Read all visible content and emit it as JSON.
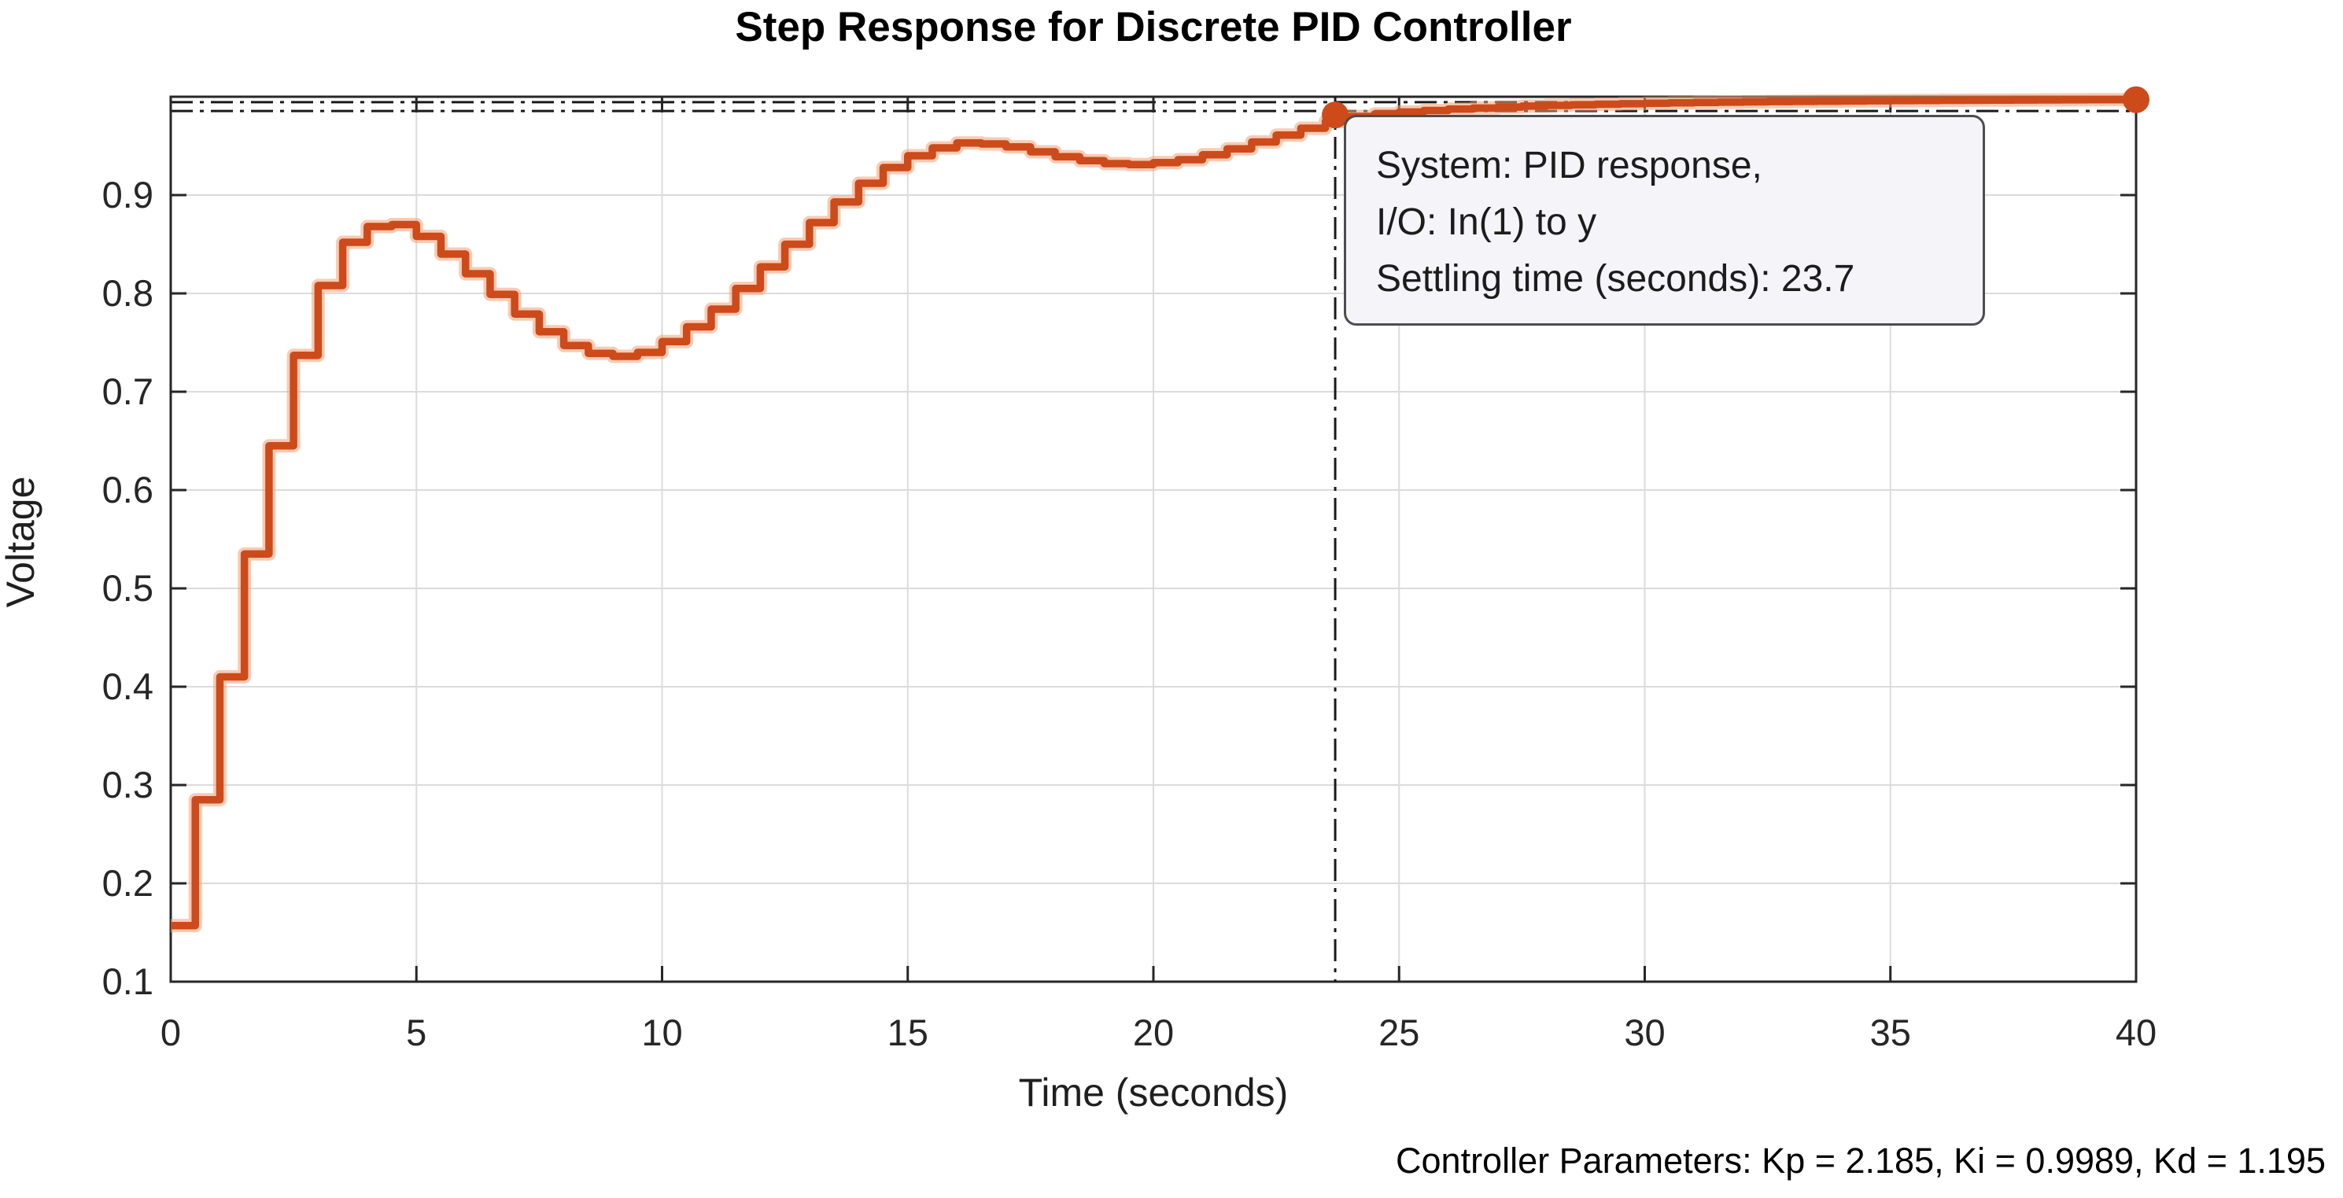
{
  "figure": {
    "title": "Step Response for Discrete PID Controller",
    "x_label": "Time (seconds)",
    "y_label": "Voltage",
    "annotation": "Controller Parameters: Kp = 2.185, Ki = 0.9989, Kd = 1.195"
  },
  "datatip": {
    "line1": "System: PID response,",
    "line2": "I/O: In(1) to y",
    "line3": "Settling time (seconds): 23.7"
  },
  "colors": {
    "curve": "#cd4a1a",
    "curve_halo": "#f2a077",
    "grid": "#dbdbdb",
    "axis": "#262626",
    "dash_line": "#1a1a1a",
    "tick_text": "#262626"
  },
  "chart_data": {
    "type": "line",
    "style": "zero-order-hold staircase step response",
    "title": "Step Response for Discrete PID Controller",
    "xlabel": "Time (seconds)",
    "ylabel": "Voltage",
    "xlim": [
      0,
      40
    ],
    "ylim": [
      0.1,
      1.0
    ],
    "grid": true,
    "x_ticks": [
      {
        "v": 0,
        "l": "0"
      },
      {
        "v": 5,
        "l": "5"
      },
      {
        "v": 10,
        "l": "10"
      },
      {
        "v": 15,
        "l": "15"
      },
      {
        "v": 20,
        "l": "20"
      },
      {
        "v": 25,
        "l": "25"
      },
      {
        "v": 30,
        "l": "30"
      },
      {
        "v": 35,
        "l": "35"
      },
      {
        "v": 40,
        "l": "40"
      }
    ],
    "y_ticks": [
      {
        "v": 0.1,
        "l": "0.1"
      },
      {
        "v": 0.2,
        "l": "0.2"
      },
      {
        "v": 0.3,
        "l": "0.3"
      },
      {
        "v": 0.4,
        "l": "0.4"
      },
      {
        "v": 0.5,
        "l": "0.5"
      },
      {
        "v": 0.6,
        "l": "0.6"
      },
      {
        "v": 0.7,
        "l": "0.7"
      },
      {
        "v": 0.8,
        "l": "0.8"
      },
      {
        "v": 0.9,
        "l": "0.9"
      }
    ],
    "series": [
      {
        "name": "PID response",
        "x_start": 0,
        "sample_time": 0.5,
        "values": [
          0.157,
          0.285,
          0.41,
          0.535,
          0.645,
          0.737,
          0.808,
          0.852,
          0.868,
          0.87,
          0.858,
          0.84,
          0.82,
          0.799,
          0.779,
          0.761,
          0.747,
          0.739,
          0.736,
          0.74,
          0.751,
          0.766,
          0.784,
          0.805,
          0.827,
          0.85,
          0.872,
          0.893,
          0.912,
          0.928,
          0.94,
          0.948,
          0.953,
          0.952,
          0.949,
          0.944,
          0.939,
          0.935,
          0.932,
          0.931,
          0.933,
          0.936,
          0.941,
          0.947,
          0.954,
          0.961,
          0.968,
          0.975,
          0.98,
          0.9825,
          0.9845,
          0.986,
          0.9875,
          0.9885,
          0.9895,
          0.9905,
          0.9912,
          0.9918,
          0.9924,
          0.9929,
          0.9934,
          0.9938,
          0.9942,
          0.9945,
          0.9948,
          0.9951,
          0.9953,
          0.9955,
          0.9957,
          0.9959,
          0.9961,
          0.9962,
          0.9964,
          0.9965,
          0.9966,
          0.9967,
          0.9968,
          0.9969,
          0.997,
          0.997,
          0.997
        ]
      }
    ],
    "settling": {
      "time": 23.7,
      "marker_value": 0.9815,
      "bounds": [
        0.9855,
        0.9945
      ]
    },
    "end_marker": {
      "x": 40,
      "y": 0.997
    },
    "legend": null
  }
}
